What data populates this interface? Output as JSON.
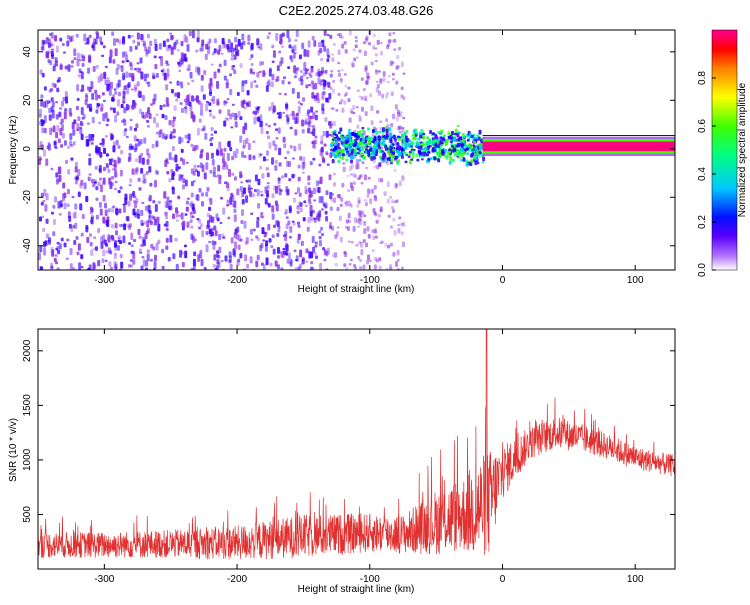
{
  "title": "C2E2.2025.274.03.48.G26",
  "chart_data": [
    {
      "type": "heatmap",
      "xlabel": "Height of straight line (km)",
      "ylabel": "Frequency (Hz)",
      "xlim": [
        -350,
        130
      ],
      "ylim": [
        -50,
        49
      ],
      "xticks": [
        -300,
        -200,
        -100,
        0,
        100
      ],
      "xtick_labels": [
        "-300",
        "-200",
        "-100",
        "0",
        "100"
      ],
      "yticks": [
        -40,
        -20,
        0,
        20,
        40
      ],
      "ytick_labels": [
        "-40",
        "-20",
        "0",
        "20",
        "40"
      ],
      "grid": false,
      "colorbar": {
        "label": "Normalized spectral amplitude",
        "range": [
          0,
          1
        ],
        "ticks": [
          0.0,
          0.2,
          0.4,
          0.6,
          0.8
        ],
        "tick_labels": [
          "0.0",
          "0.2",
          "0.4",
          "0.6",
          "0.8"
        ],
        "colors": [
          "#ffffff",
          "#8a2be2",
          "#3a00ff",
          "#0000ff",
          "#00c8ff",
          "#00ff80",
          "#40ff00",
          "#ffff00",
          "#ff8000",
          "#ff0000",
          "#ff0080"
        ]
      },
      "features": [
        {
          "x_range": [
            -350,
            -130
          ],
          "freq_range": [
            -50,
            49
          ],
          "amplitude": 0.15
        },
        {
          "x_range": [
            -130,
            -75
          ],
          "freq_range": [
            -50,
            49
          ],
          "amplitude": 0.08
        },
        {
          "x_range": [
            -130,
            -15
          ],
          "freq_range": [
            -8,
            8
          ],
          "amplitude": 0.45
        },
        {
          "x_range": [
            -15,
            130
          ],
          "freq_range": [
            -1,
            3
          ],
          "amplitude": 0.95
        }
      ]
    },
    {
      "type": "line",
      "xlabel": "Height of straight line (km)",
      "ylabel": "SNR (10 * v/v)",
      "xlim": [
        -350,
        130
      ],
      "ylim": [
        0,
        2200
      ],
      "xticks": [
        -300,
        -200,
        -100,
        0,
        100
      ],
      "xtick_labels": [
        "-300",
        "-200",
        "-100",
        "0",
        "100"
      ],
      "yticks": [
        500,
        1000,
        1500,
        2000
      ],
      "ytick_labels": [
        "500",
        "1000",
        "1500",
        "2000"
      ],
      "grid": false,
      "series": [
        {
          "color": "#e03030",
          "x": [
            -350,
            -300,
            -250,
            -200,
            -150,
            -100,
            -75,
            -50,
            -30,
            -20,
            -10,
            0,
            20,
            40,
            60,
            80,
            100,
            130
          ],
          "y_mean": [
            220,
            220,
            230,
            240,
            300,
            330,
            320,
            430,
            500,
            550,
            600,
            880,
            1150,
            1250,
            1200,
            1120,
            1020,
            940
          ],
          "y_spread": [
            120,
            120,
            130,
            160,
            200,
            180,
            180,
            300,
            350,
            450,
            500,
            250,
            150,
            150,
            130,
            120,
            110,
            100
          ],
          "peak": {
            "x": -12,
            "y": 2200
          }
        }
      ]
    }
  ]
}
